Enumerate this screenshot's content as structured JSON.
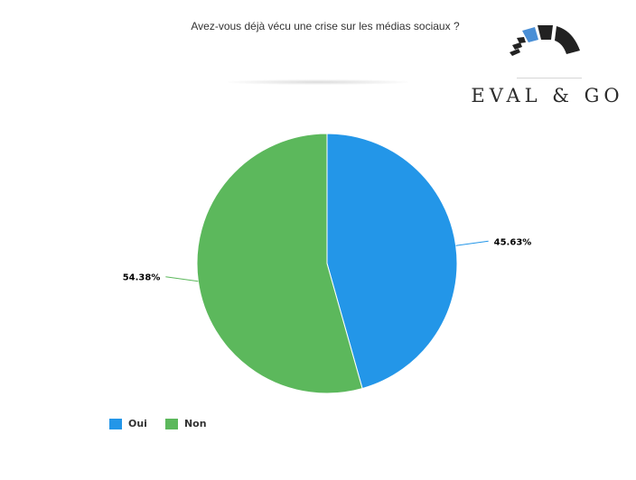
{
  "chart_data": {
    "type": "pie",
    "title": "Avez-vous déjà vécu une crise sur les médias sociaux ?",
    "categories": [
      "Oui",
      "Non"
    ],
    "values": [
      45.63,
      54.38
    ],
    "value_labels": [
      "45.63%",
      "54.38%"
    ],
    "colors": [
      "#2396e8",
      "#5cb85c"
    ],
    "legend_position": "bottom-left",
    "start_angle": "12 o'clock, clockwise"
  },
  "logo": {
    "text": "EVAL & GO",
    "colors": {
      "accent": "#4a8fd6",
      "dark": "#222222"
    }
  }
}
